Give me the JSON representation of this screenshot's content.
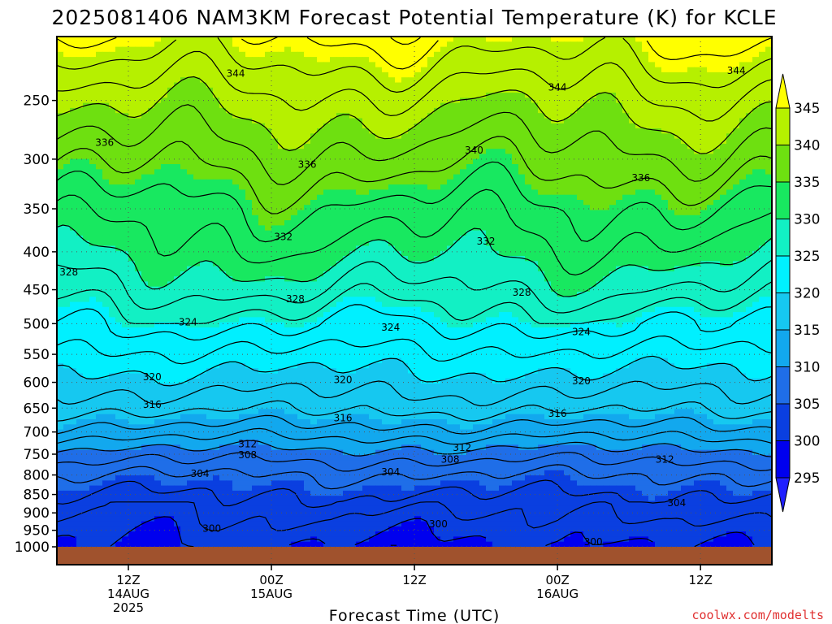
{
  "chart_data": {
    "type": "heatmap",
    "title": "2025081406 NAM3KM Forecast Potential Temperature (K) for KCLE",
    "xlabel": "Forecast Time (UTC)",
    "ylabel": "",
    "credit": "coolwx.com/modelts",
    "yaxis": {
      "scale": "log",
      "inverted": true,
      "range": [
        1000,
        200
      ],
      "tick_labels": [
        250,
        300,
        350,
        400,
        450,
        500,
        550,
        600,
        650,
        700,
        750,
        800,
        850,
        900,
        950,
        1000
      ]
    },
    "xaxis": {
      "ticks": [
        {
          "hours": 6,
          "lines": [
            "12Z",
            "14AUG",
            "2025"
          ]
        },
        {
          "hours": 18,
          "lines": [
            "00Z",
            "15AUG"
          ]
        },
        {
          "hours": 30,
          "lines": [
            "12Z"
          ]
        },
        {
          "hours": 42,
          "lines": [
            "00Z",
            "16AUG"
          ]
        },
        {
          "hours": 54,
          "lines": [
            "12Z"
          ]
        }
      ],
      "range_hours": [
        0,
        60
      ]
    },
    "colorbar": {
      "levels": [
        295,
        300,
        305,
        310,
        315,
        320,
        325,
        330,
        335,
        340,
        345
      ],
      "colors": [
        "#2020ff",
        "#0000ee",
        "#0a3fe0",
        "#1f6ee8",
        "#12a8ee",
        "#16c8f0",
        "#00f0ff",
        "#12f0c4",
        "#18e860",
        "#6ee010",
        "#b6f000",
        "#ffff00"
      ],
      "extend": "both"
    },
    "grid": true,
    "ground_color": "#a0522d",
    "contour_labels": [
      {
        "value": 344,
        "hours": 15,
        "p": 230
      },
      {
        "value": 344,
        "hours": 42,
        "p": 240
      },
      {
        "value": 344,
        "hours": 57,
        "p": 228
      },
      {
        "value": 336,
        "hours": 4,
        "p": 285
      },
      {
        "value": 340,
        "hours": 35,
        "p": 292
      },
      {
        "value": 336,
        "hours": 21,
        "p": 305
      },
      {
        "value": 336,
        "hours": 49,
        "p": 318
      },
      {
        "value": 332,
        "hours": 19,
        "p": 382
      },
      {
        "value": 332,
        "hours": 36,
        "p": 387
      },
      {
        "value": 328,
        "hours": 1,
        "p": 426
      },
      {
        "value": 328,
        "hours": 20,
        "p": 463
      },
      {
        "value": 328,
        "hours": 39,
        "p": 454
      },
      {
        "value": 324,
        "hours": 11,
        "p": 498
      },
      {
        "value": 324,
        "hours": 28,
        "p": 506
      },
      {
        "value": 324,
        "hours": 44,
        "p": 513
      },
      {
        "value": 320,
        "hours": 8,
        "p": 590
      },
      {
        "value": 320,
        "hours": 24,
        "p": 595
      },
      {
        "value": 320,
        "hours": 44,
        "p": 598
      },
      {
        "value": 316,
        "hours": 8,
        "p": 643
      },
      {
        "value": 316,
        "hours": 24,
        "p": 670
      },
      {
        "value": 316,
        "hours": 42,
        "p": 661
      },
      {
        "value": 312,
        "hours": 16,
        "p": 727
      },
      {
        "value": 308,
        "hours": 16,
        "p": 752
      },
      {
        "value": 312,
        "hours": 34,
        "p": 735
      },
      {
        "value": 308,
        "hours": 33,
        "p": 762
      },
      {
        "value": 312,
        "hours": 51,
        "p": 762
      },
      {
        "value": 304,
        "hours": 12,
        "p": 797
      },
      {
        "value": 304,
        "hours": 28,
        "p": 793
      },
      {
        "value": 304,
        "hours": 52,
        "p": 873
      },
      {
        "value": 300,
        "hours": 13,
        "p": 945
      },
      {
        "value": 300,
        "hours": 32,
        "p": 932
      },
      {
        "value": 300,
        "hours": 45,
        "p": 985
      }
    ]
  }
}
